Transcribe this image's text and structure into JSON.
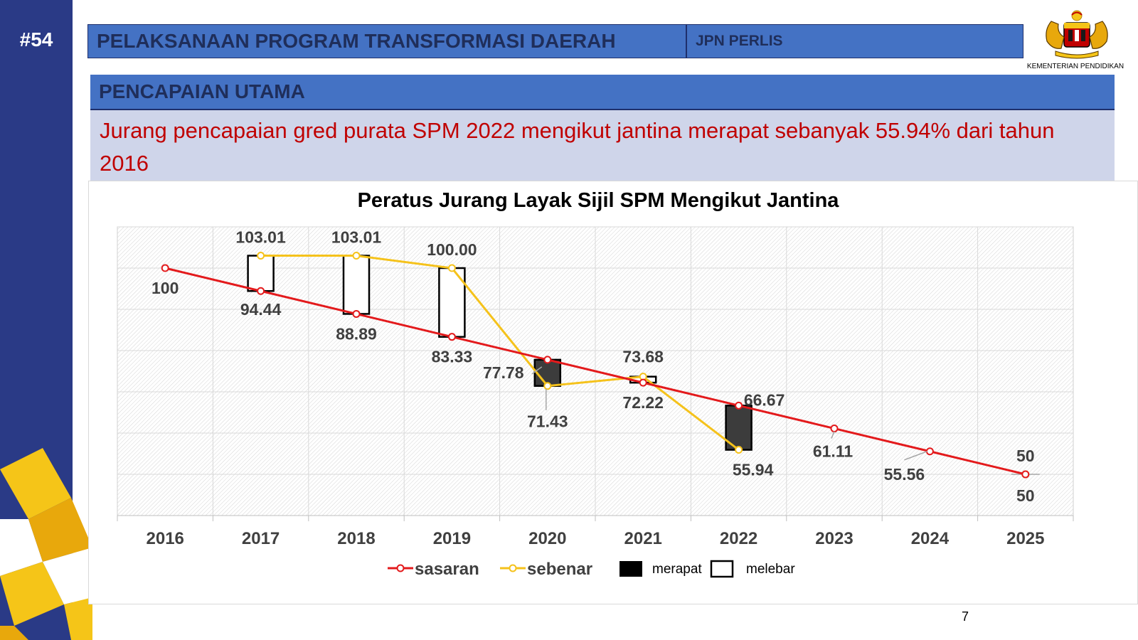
{
  "slide": {
    "number": "#54"
  },
  "header": {
    "title": "PELAKSANAAN PROGRAM TRANSFORMASI DAERAH",
    "org": "JPN PERLIS",
    "logo_caption": "KEMENTERIAN PENDIDIKAN"
  },
  "section": {
    "label": "PENCAPAIAN UTAMA"
  },
  "statement": {
    "text": "Jurang pencapaian gred purata SPM 2022 mengikut jantina merapat sebanyak 55.94% dari tahun 2016"
  },
  "footer": {
    "page": "7"
  },
  "colors": {
    "target": "#e31a1c",
    "actual": "#f5c21b",
    "narrowing": "#3c3c3c",
    "widening": "#ffffff",
    "brand_blue": "#4472c4",
    "sidebar": "#2a3a86",
    "statement_text": "#c00000"
  },
  "chart_data": {
    "type": "line",
    "title": "Peratus Jurang Layak Sijil SPM Mengikut Jantina",
    "categories": [
      "2016",
      "2017",
      "2018",
      "2019",
      "2020",
      "2021",
      "2022",
      "2023",
      "2024",
      "2025"
    ],
    "series": [
      {
        "name": "sasaran",
        "values": [
          100,
          94.44,
          88.89,
          83.33,
          77.78,
          72.22,
          66.67,
          61.11,
          55.56,
          50
        ],
        "labels": [
          "100",
          "94.44",
          "88.89",
          "83.33",
          "77.78",
          "72.22",
          "66.67",
          "61.11",
          "55.56",
          "50"
        ]
      },
      {
        "name": "sebenar",
        "values": [
          null,
          103.01,
          103.01,
          100.0,
          71.43,
          73.68,
          55.94,
          null,
          null,
          50
        ],
        "labels": [
          "",
          "103.01",
          "103.01",
          "100.00",
          "71.43",
          "73.68",
          "55.94",
          "",
          "",
          "50"
        ]
      }
    ],
    "legend": [
      "sasaran",
      "sebenar",
      "merapat",
      "melebar"
    ],
    "legend_position": "bottom",
    "ylim": [
      40,
      110
    ],
    "grid": true,
    "gap_boxes": [
      {
        "year": "2017",
        "kind": "melebar"
      },
      {
        "year": "2018",
        "kind": "melebar"
      },
      {
        "year": "2019",
        "kind": "melebar"
      },
      {
        "year": "2020",
        "kind": "merapat"
      },
      {
        "year": "2021",
        "kind": "melebar"
      },
      {
        "year": "2022",
        "kind": "merapat"
      }
    ]
  }
}
